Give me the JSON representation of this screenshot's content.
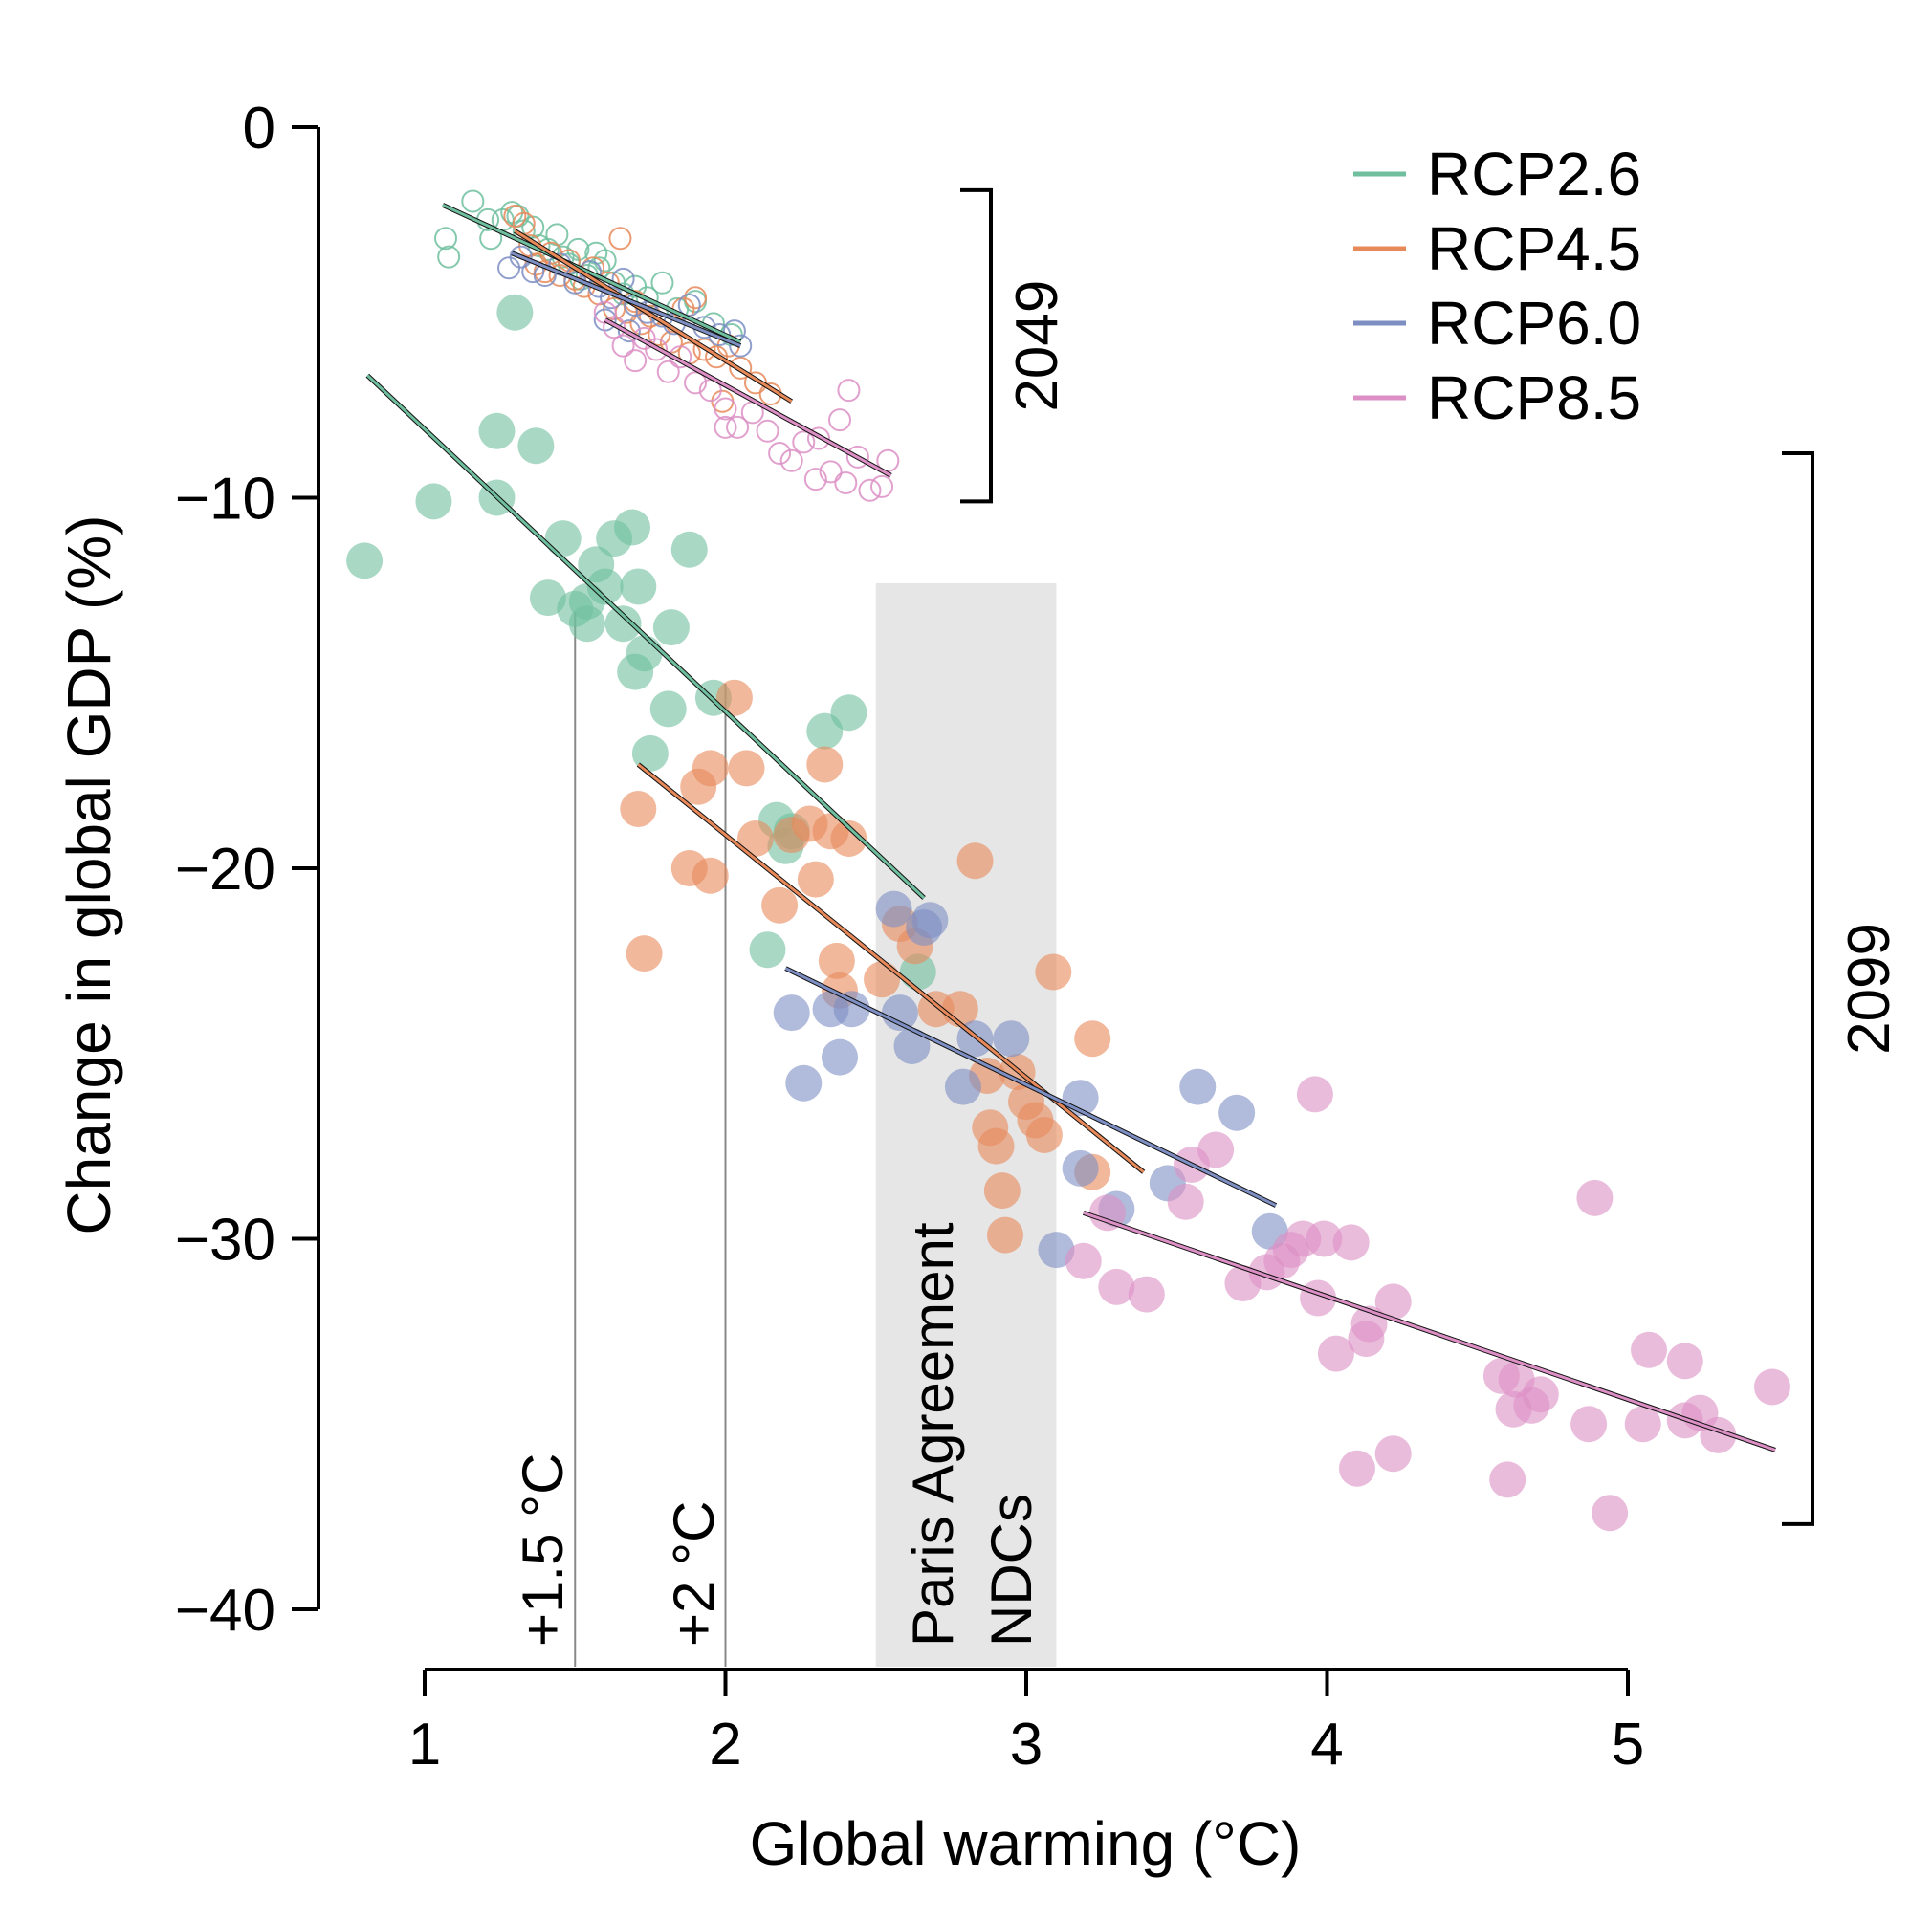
{
  "chart_data": {
    "type": "scatter",
    "xlabel": "Global warming (°C)",
    "ylabel": "Change in global GDP (%)",
    "xlim": [
      1,
      5
    ],
    "ylim": [
      -40,
      0
    ],
    "xticks": [
      1,
      2,
      3,
      4,
      5
    ],
    "yticks": [
      0,
      -10,
      -20,
      -30,
      -40
    ],
    "xtick_labels": [
      "1",
      "2",
      "3",
      "4",
      "5"
    ],
    "ytick_labels": [
      "0",
      "−10",
      "−20",
      "−30",
      "−40"
    ],
    "legend": {
      "placement": "top-right",
      "entries": [
        "RCP2.6",
        "RCP4.5",
        "RCP6.0",
        "RCP8.5"
      ]
    },
    "grid": false,
    "annotations": {
      "vline_15": {
        "x": 1.5,
        "label": "+1.5 °C"
      },
      "vline_2": {
        "x": 2.0,
        "label": "+2 °C"
      },
      "paris_band": {
        "x_range": [
          2.5,
          3.1
        ],
        "line1": "Paris Agreement",
        "line2": "NDCs"
      },
      "bracket_2049": {
        "y_range": [
          -1.7,
          -10.1
        ],
        "label": "2049"
      },
      "bracket_2099": {
        "y_range": [
          -8.8,
          -37.7
        ],
        "label": "2099"
      }
    },
    "series": [
      {
        "name": "RCP2.6",
        "period": "2049",
        "marker": "open",
        "color": "#6fbf9f",
        "points": [
          [
            1.07,
            -3.0
          ],
          [
            1.08,
            -3.5
          ],
          [
            1.16,
            -2.0
          ],
          [
            1.21,
            -2.5
          ],
          [
            1.22,
            -3.0
          ],
          [
            1.26,
            -2.5
          ],
          [
            1.29,
            -2.3
          ],
          [
            1.31,
            -2.4
          ],
          [
            1.33,
            -2.8
          ],
          [
            1.36,
            -2.7
          ],
          [
            1.38,
            -3.2
          ],
          [
            1.41,
            -3.3
          ],
          [
            1.44,
            -2.9
          ],
          [
            1.46,
            -3.5
          ],
          [
            1.48,
            -3.7
          ],
          [
            1.51,
            -3.3
          ],
          [
            1.54,
            -4.0
          ],
          [
            1.57,
            -3.4
          ],
          [
            1.6,
            -3.6
          ],
          [
            1.63,
            -4.2
          ],
          [
            1.66,
            -4.5
          ],
          [
            1.7,
            -4.3
          ],
          [
            1.74,
            -4.6
          ],
          [
            1.79,
            -4.2
          ],
          [
            1.84,
            -4.9
          ],
          [
            1.9,
            -4.7
          ],
          [
            1.96,
            -5.3
          ],
          [
            2.02,
            -5.6
          ],
          [
            1.52,
            -4.1
          ],
          [
            1.58,
            -3.8
          ]
        ],
        "fit": [
          [
            1.06,
            -2.1
          ],
          [
            2.05,
            -5.8
          ]
        ]
      },
      {
        "name": "RCP4.5",
        "period": "2049",
        "marker": "open",
        "color": "#e8895a",
        "points": [
          [
            1.3,
            -2.4
          ],
          [
            1.33,
            -2.6
          ],
          [
            1.35,
            -3.2
          ],
          [
            1.37,
            -3.7
          ],
          [
            1.4,
            -3.9
          ],
          [
            1.42,
            -3.4
          ],
          [
            1.45,
            -4.0
          ],
          [
            1.48,
            -3.6
          ],
          [
            1.5,
            -4.1
          ],
          [
            1.53,
            -4.3
          ],
          [
            1.56,
            -3.8
          ],
          [
            1.58,
            -4.5
          ],
          [
            1.61,
            -4.2
          ],
          [
            1.63,
            -4.9
          ],
          [
            1.65,
            -3.0
          ],
          [
            1.67,
            -5.0
          ],
          [
            1.7,
            -4.7
          ],
          [
            1.72,
            -5.3
          ],
          [
            1.75,
            -5.1
          ],
          [
            1.78,
            -5.6
          ],
          [
            1.82,
            -5.8
          ],
          [
            1.86,
            -4.9
          ],
          [
            1.9,
            -4.6
          ],
          [
            1.93,
            -6.0
          ],
          [
            1.97,
            -6.2
          ],
          [
            2.01,
            -5.9
          ],
          [
            2.05,
            -6.5
          ],
          [
            2.1,
            -6.9
          ],
          [
            2.15,
            -7.2
          ],
          [
            1.88,
            -6.1
          ],
          [
            1.99,
            -7.4
          ]
        ],
        "fit": [
          [
            1.3,
            -2.8
          ],
          [
            2.22,
            -7.4
          ]
        ]
      },
      {
        "name": "RCP6.0",
        "period": "2049",
        "marker": "open",
        "color": "#7d8ec3",
        "points": [
          [
            1.28,
            -3.8
          ],
          [
            1.32,
            -3.5
          ],
          [
            1.36,
            -3.9
          ],
          [
            1.4,
            -4.0
          ],
          [
            1.45,
            -3.7
          ],
          [
            1.5,
            -4.2
          ],
          [
            1.55,
            -3.9
          ],
          [
            1.58,
            -4.3
          ],
          [
            1.62,
            -4.6
          ],
          [
            1.66,
            -4.1
          ],
          [
            1.7,
            -4.8
          ],
          [
            1.74,
            -5.0
          ],
          [
            1.79,
            -5.1
          ],
          [
            1.83,
            -5.3
          ],
          [
            1.88,
            -4.8
          ],
          [
            1.93,
            -5.4
          ],
          [
            1.98,
            -5.6
          ],
          [
            2.03,
            -5.5
          ],
          [
            1.6,
            -5.2
          ],
          [
            1.68,
            -5.5
          ],
          [
            2.05,
            -5.9
          ]
        ],
        "fit": [
          [
            1.29,
            -3.4
          ],
          [
            2.05,
            -5.9
          ]
        ]
      },
      {
        "name": "RCP8.5",
        "period": "2049",
        "marker": "open",
        "color": "#dc8fc4",
        "points": [
          [
            1.6,
            -5.0
          ],
          [
            1.63,
            -5.4
          ],
          [
            1.66,
            -5.9
          ],
          [
            1.7,
            -6.3
          ],
          [
            1.73,
            -5.7
          ],
          [
            1.77,
            -6.0
          ],
          [
            1.81,
            -6.6
          ],
          [
            1.85,
            -6.2
          ],
          [
            1.9,
            -6.9
          ],
          [
            1.95,
            -7.1
          ],
          [
            2.0,
            -7.6
          ],
          [
            2.04,
            -8.1
          ],
          [
            2.09,
            -7.7
          ],
          [
            2.14,
            -8.2
          ],
          [
            2.18,
            -8.8
          ],
          [
            2.22,
            -9.0
          ],
          [
            2.26,
            -8.5
          ],
          [
            2.3,
            -9.5
          ],
          [
            2.35,
            -9.3
          ],
          [
            2.4,
            -9.6
          ],
          [
            2.44,
            -8.9
          ],
          [
            2.48,
            -9.8
          ],
          [
            2.52,
            -9.7
          ],
          [
            2.54,
            -9.0
          ],
          [
            2.38,
            -7.9
          ],
          [
            2.41,
            -7.1
          ],
          [
            2.0,
            -8.1
          ],
          [
            2.31,
            -8.4
          ]
        ],
        "fit": [
          [
            1.6,
            -5.2
          ],
          [
            2.55,
            -9.4
          ]
        ]
      },
      {
        "name": "RCP2.6",
        "period": "2099",
        "marker": "filled",
        "color": "#6fbf9f",
        "points": [
          [
            0.8,
            -11.7
          ],
          [
            1.03,
            -10.1
          ],
          [
            1.24,
            -8.2
          ],
          [
            1.3,
            -5.0
          ],
          [
            1.37,
            -8.6
          ],
          [
            1.24,
            -10.0
          ],
          [
            1.41,
            -12.7
          ],
          [
            1.46,
            -11.1
          ],
          [
            1.5,
            -13.0
          ],
          [
            1.54,
            -12.8
          ],
          [
            1.54,
            -13.4
          ],
          [
            1.57,
            -11.8
          ],
          [
            1.6,
            -12.4
          ],
          [
            1.63,
            -11.1
          ],
          [
            1.66,
            -13.4
          ],
          [
            1.69,
            -10.8
          ],
          [
            1.71,
            -12.4
          ],
          [
            1.7,
            -14.7
          ],
          [
            1.73,
            -14.2
          ],
          [
            1.75,
            -16.9
          ],
          [
            1.81,
            -15.7
          ],
          [
            1.82,
            -13.5
          ],
          [
            1.88,
            -11.4
          ],
          [
            1.96,
            -15.4
          ],
          [
            2.17,
            -18.7
          ],
          [
            2.2,
            -19.4
          ],
          [
            2.22,
            -19.0
          ],
          [
            2.14,
            -22.2
          ],
          [
            2.33,
            -16.3
          ],
          [
            2.41,
            -15.8
          ],
          [
            2.64,
            -22.8
          ]
        ],
        "fit": [
          [
            0.81,
            -6.7
          ],
          [
            2.66,
            -20.8
          ]
        ]
      },
      {
        "name": "RCP4.5",
        "period": "2099",
        "marker": "filled",
        "color": "#e8895a",
        "points": [
          [
            1.71,
            -18.4
          ],
          [
            1.73,
            -22.3
          ],
          [
            1.88,
            -20.0
          ],
          [
            1.91,
            -17.8
          ],
          [
            1.95,
            -20.2
          ],
          [
            1.95,
            -17.3
          ],
          [
            2.03,
            -15.4
          ],
          [
            2.07,
            -17.3
          ],
          [
            2.1,
            -19.2
          ],
          [
            2.18,
            -21.0
          ],
          [
            2.22,
            -19.1
          ],
          [
            2.28,
            -18.8
          ],
          [
            2.3,
            -20.3
          ],
          [
            2.33,
            -17.2
          ],
          [
            2.35,
            -19.0
          ],
          [
            2.37,
            -22.5
          ],
          [
            2.38,
            -23.3
          ],
          [
            2.41,
            -19.2
          ],
          [
            2.52,
            -23.0
          ],
          [
            2.58,
            -21.5
          ],
          [
            2.63,
            -22.1
          ],
          [
            2.7,
            -23.8
          ],
          [
            2.78,
            -23.8
          ],
          [
            2.83,
            -19.8
          ],
          [
            2.87,
            -25.6
          ],
          [
            2.88,
            -27.0
          ],
          [
            2.9,
            -27.5
          ],
          [
            2.92,
            -28.7
          ],
          [
            2.93,
            -29.9
          ],
          [
            2.97,
            -25.5
          ],
          [
            3.0,
            -26.3
          ],
          [
            3.03,
            -26.8
          ],
          [
            3.06,
            -27.2
          ],
          [
            3.09,
            -22.8
          ],
          [
            3.22,
            -24.6
          ],
          [
            3.22,
            -28.2
          ]
        ],
        "fit": [
          [
            1.71,
            -17.2
          ],
          [
            3.39,
            -28.2
          ]
        ]
      },
      {
        "name": "RCP6.0",
        "period": "2099",
        "marker": "filled",
        "color": "#7d8ec3",
        "points": [
          [
            2.22,
            -23.9
          ],
          [
            2.26,
            -25.8
          ],
          [
            2.35,
            -23.8
          ],
          [
            2.38,
            -25.1
          ],
          [
            2.42,
            -23.8
          ],
          [
            2.56,
            -21.1
          ],
          [
            2.58,
            -23.9
          ],
          [
            2.62,
            -24.8
          ],
          [
            2.66,
            -21.6
          ],
          [
            2.68,
            -21.4
          ],
          [
            2.79,
            -25.9
          ],
          [
            2.83,
            -24.6
          ],
          [
            2.95,
            -24.6
          ],
          [
            3.1,
            -30.3
          ],
          [
            3.18,
            -26.2
          ],
          [
            3.18,
            -28.1
          ],
          [
            3.3,
            -29.2
          ],
          [
            3.47,
            -28.5
          ],
          [
            3.57,
            -25.9
          ],
          [
            3.7,
            -26.6
          ],
          [
            3.81,
            -29.8
          ]
        ],
        "fit": [
          [
            2.2,
            -22.7
          ],
          [
            3.83,
            -29.1
          ]
        ]
      },
      {
        "name": "RCP8.5",
        "period": "2099",
        "marker": "filled",
        "color": "#dc8fc4",
        "points": [
          [
            3.19,
            -30.6
          ],
          [
            3.27,
            -29.3
          ],
          [
            3.3,
            -31.3
          ],
          [
            3.4,
            -31.5
          ],
          [
            3.53,
            -29.0
          ],
          [
            3.55,
            -28.0
          ],
          [
            3.63,
            -27.6
          ],
          [
            3.72,
            -31.2
          ],
          [
            3.8,
            -30.9
          ],
          [
            3.85,
            -30.6
          ],
          [
            3.88,
            -30.3
          ],
          [
            3.92,
            -30.0
          ],
          [
            3.96,
            -26.1
          ],
          [
            3.97,
            -31.6
          ],
          [
            3.99,
            -30.0
          ],
          [
            4.03,
            -33.1
          ],
          [
            4.08,
            -30.1
          ],
          [
            4.1,
            -36.2
          ],
          [
            4.13,
            -32.7
          ],
          [
            4.14,
            -32.3
          ],
          [
            4.22,
            -31.7
          ],
          [
            4.22,
            -35.8
          ],
          [
            4.58,
            -33.7
          ],
          [
            4.6,
            -36.5
          ],
          [
            4.62,
            -34.6
          ],
          [
            4.63,
            -33.8
          ],
          [
            4.68,
            -34.5
          ],
          [
            4.71,
            -34.2
          ],
          [
            4.87,
            -35.0
          ],
          [
            4.89,
            -28.9
          ],
          [
            4.94,
            -37.4
          ],
          [
            5.07,
            -33.0
          ],
          [
            5.05,
            -35.0
          ],
          [
            5.19,
            -34.9
          ],
          [
            5.19,
            -33.3
          ],
          [
            5.24,
            -34.7
          ],
          [
            5.3,
            -35.3
          ],
          [
            5.48,
            -34.0
          ]
        ],
        "fit": [
          [
            3.19,
            -29.3
          ],
          [
            5.49,
            -35.7
          ]
        ]
      }
    ]
  }
}
